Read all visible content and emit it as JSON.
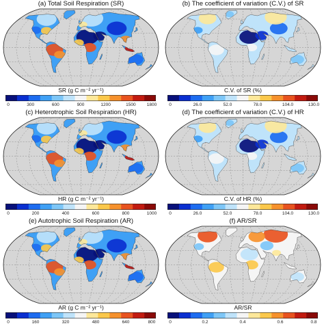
{
  "panels": [
    {
      "id": "a",
      "title": "(a) Total Soil Respiration (SR)",
      "cb_label": "SR (g C m⁻² yr⁻¹)",
      "ticks": [
        "0",
        "300",
        "600",
        "900",
        "1200",
        "1500",
        "1800"
      ],
      "scheme": "flux",
      "scale": [
        0,
        1800
      ]
    },
    {
      "id": "b",
      "title": "(b) The coefficient of variation (C.V.) of SR",
      "cb_label": "C.V. of SR (%)",
      "ticks": [
        "0",
        "26.0",
        "52.0",
        "78.0",
        "104.0",
        "130.0"
      ],
      "scheme": "cv",
      "scale": [
        0,
        130
      ]
    },
    {
      "id": "c",
      "title": "(c) Heterotrophic Soil Respiration (HR)",
      "cb_label": "HR (g C m⁻² yr⁻¹)",
      "ticks": [
        "0",
        "200",
        "400",
        "600",
        "800",
        "1000"
      ],
      "scheme": "flux",
      "scale": [
        0,
        1000
      ]
    },
    {
      "id": "d",
      "title": "(d) The coefficient of variation (C.V.) of HR",
      "cb_label": "C.V. of HR (%)",
      "ticks": [
        "0",
        "26.0",
        "52.0",
        "78.0",
        "104.0",
        "130.0"
      ],
      "scheme": "cv",
      "scale": [
        0,
        130
      ]
    },
    {
      "id": "e",
      "title": "(e) Autotrophic Soil Respiration (AR)",
      "cb_label": "AR (g C m⁻² yr⁻¹)",
      "ticks": [
        "0",
        "160",
        "320",
        "480",
        "640",
        "800"
      ],
      "scheme": "flux",
      "scale": [
        0,
        800
      ]
    },
    {
      "id": "f",
      "title": "(f) AR/SR",
      "cb_label": "AR/SR",
      "ticks": [
        "0",
        "0.2",
        "0.4",
        "0.6",
        "0.8"
      ],
      "scheme": "ratio",
      "scale": [
        0,
        0.8
      ]
    }
  ],
  "colors": {
    "ocean": "#d6d6d6",
    "frame": "#222222",
    "palette": [
      "#08107a",
      "#0a2fd0",
      "#1d6cf0",
      "#3fa0f5",
      "#7dc6f7",
      "#bfe3fa",
      "#f5f5f5",
      "#fde89a",
      "#fbc84b",
      "#f6912c",
      "#e8531f",
      "#c21b10",
      "#8a0a08"
    ]
  }
}
